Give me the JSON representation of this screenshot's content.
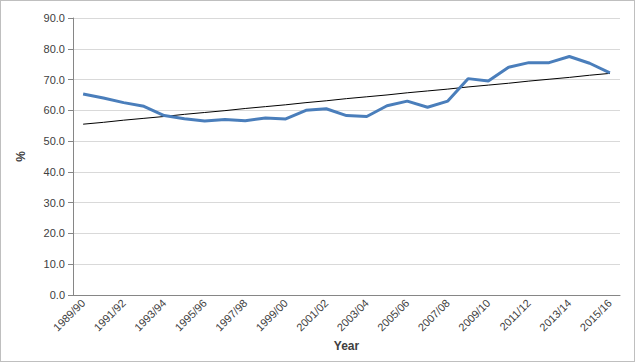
{
  "chart_data": {
    "type": "line",
    "x_label": "Year",
    "y_label": "%",
    "categories": [
      "1989/90",
      null,
      "1991/92",
      null,
      "1993/94",
      null,
      "1995/96",
      null,
      "1997/98",
      null,
      "1999/00",
      null,
      "2001/02",
      null,
      "2003/04",
      null,
      "2005/06",
      null,
      "2007/08",
      null,
      "2009/10",
      null,
      "2011/12",
      null,
      "2013/14",
      null,
      "2015/16"
    ],
    "series": [
      {
        "color": "#4a7ebb",
        "values": [
          65.3,
          64.0,
          62.5,
          61.3,
          58.3,
          57.3,
          56.5,
          57.0,
          56.6,
          57.5,
          57.2,
          60.0,
          60.5,
          58.3,
          58.0,
          61.5,
          63.0,
          61.0,
          63.0,
          70.3,
          69.5,
          74.0,
          75.5,
          75.5,
          77.5,
          75.3,
          72.2
        ]
      },
      {
        "color": "#000000",
        "values": [
          55.5,
          56.1,
          56.8,
          57.4,
          58.0,
          58.7,
          59.3,
          59.9,
          60.6,
          61.2,
          61.8,
          62.5,
          63.1,
          63.8,
          64.4,
          65.0,
          65.7,
          66.3,
          66.9,
          67.6,
          68.2,
          68.8,
          69.5,
          70.1,
          70.7,
          71.4,
          72.0
        ]
      }
    ],
    "ylim": [
      0,
      90
    ],
    "yticks": [
      {
        "value": 0,
        "label": "0.0"
      },
      {
        "value": 10,
        "label": "10.0"
      },
      {
        "value": 20,
        "label": "20.0"
      },
      {
        "value": 30,
        "label": "30.0"
      },
      {
        "value": 40,
        "label": "40.0"
      },
      {
        "value": 50,
        "label": "50.0"
      },
      {
        "value": 60,
        "label": "60.0"
      },
      {
        "value": 70,
        "label": "70.0"
      },
      {
        "value": 80,
        "label": "80.0"
      },
      {
        "value": 90,
        "label": "90.0"
      }
    ],
    "grid": true
  }
}
